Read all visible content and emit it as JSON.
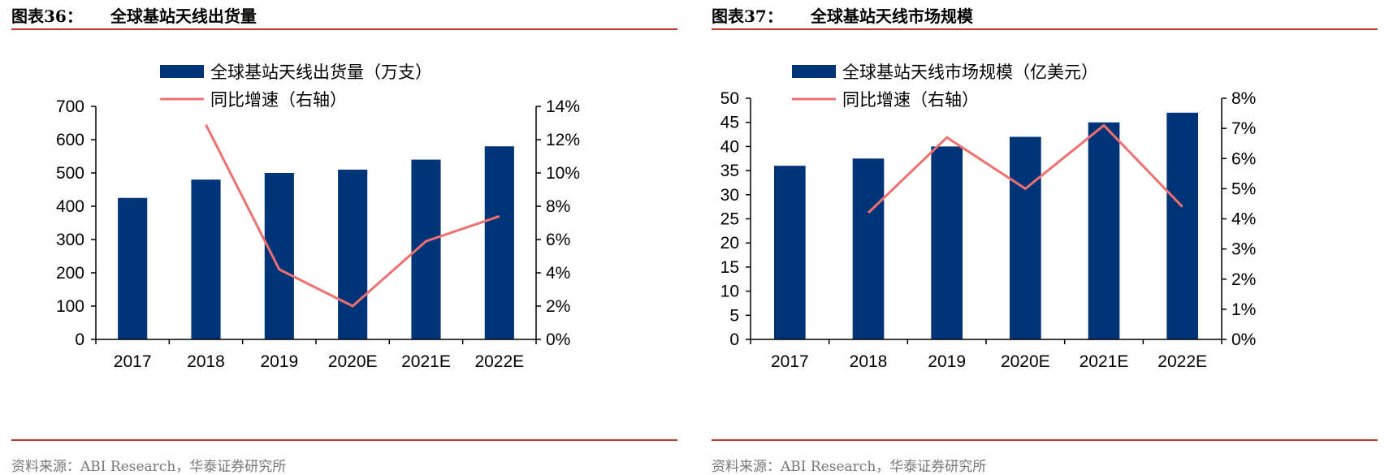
{
  "panels": [
    {
      "title_label": "图表36：",
      "title_text": "全球基站天线出货量",
      "source": "资料来源：ABI Research，华泰证券研究所",
      "chart_data": {
        "type": "bar",
        "categories": [
          "2017",
          "2018",
          "2019",
          "2020E",
          "2021E",
          "2022E"
        ],
        "series": [
          {
            "name": "全球基站天线出货量（万支）",
            "type": "bar",
            "axis": "left",
            "values": [
              425,
              480,
              500,
              510,
              540,
              580
            ]
          },
          {
            "name": "同比增速（右轴）",
            "type": "line",
            "axis": "right",
            "values": [
              null,
              12.9,
              4.2,
              2.0,
              5.9,
              7.4
            ]
          }
        ],
        "y_left": {
          "min": 0,
          "max": 700,
          "step": 100,
          "ticks": [
            "0",
            "100",
            "200",
            "300",
            "400",
            "500",
            "600",
            "700"
          ]
        },
        "y_right": {
          "min": 0,
          "max": 14,
          "step": 2,
          "ticks": [
            "0%",
            "2%",
            "4%",
            "6%",
            "8%",
            "10%",
            "12%",
            "14%"
          ]
        },
        "colors": {
          "bar": "#003478",
          "line": "#f07070"
        },
        "legend": "top"
      }
    },
    {
      "title_label": "图表37：",
      "title_text": "全球基站天线市场规模",
      "source": "资料来源：ABI Research，华泰证券研究所",
      "chart_data": {
        "type": "bar",
        "categories": [
          "2017",
          "2018",
          "2019",
          "2020E",
          "2021E",
          "2022E"
        ],
        "series": [
          {
            "name": "全球基站天线市场规模（亿美元）",
            "type": "bar",
            "axis": "left",
            "values": [
              36,
              37.5,
              40,
              42,
              45,
              47
            ]
          },
          {
            "name": "同比增速（右轴）",
            "type": "line",
            "axis": "right",
            "values": [
              null,
              4.2,
              6.7,
              5.0,
              7.1,
              4.4
            ]
          }
        ],
        "y_left": {
          "min": 0,
          "max": 50,
          "step": 5,
          "ticks": [
            "0",
            "5",
            "10",
            "15",
            "20",
            "25",
            "30",
            "35",
            "40",
            "45",
            "50"
          ]
        },
        "y_right": {
          "min": 0,
          "max": 8,
          "step": 1,
          "ticks": [
            "0%",
            "1%",
            "2%",
            "3%",
            "4%",
            "5%",
            "6%",
            "7%",
            "8%"
          ]
        },
        "colors": {
          "bar": "#003478",
          "line": "#f07070"
        },
        "legend": "top"
      }
    }
  ]
}
